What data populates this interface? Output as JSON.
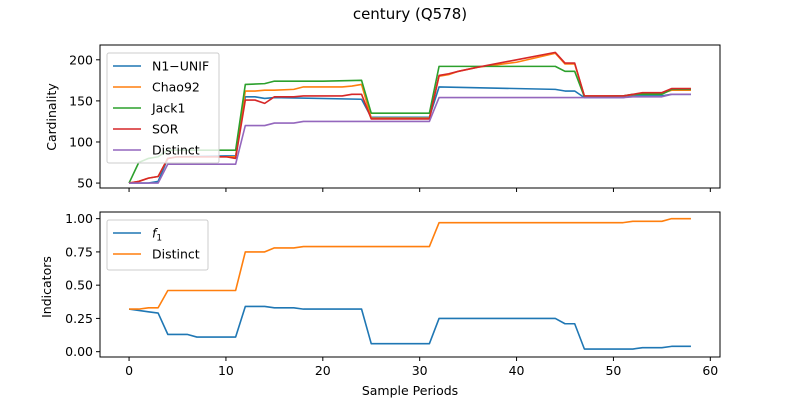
{
  "figure": {
    "title": "century (Q578)"
  },
  "chart_data": [
    {
      "type": "line",
      "ylabel": "Cardinality",
      "xlabel": "",
      "xlim": [
        -3,
        61
      ],
      "ylim": [
        44,
        218
      ],
      "xticks": [
        0,
        10,
        20,
        30,
        40,
        50,
        60
      ],
      "show_xtick_labels": false,
      "yticks": [
        50,
        100,
        150,
        200
      ],
      "grid": false,
      "legend_position": "upper-left",
      "series": [
        {
          "name": "N1−UNIF",
          "color": "#1f77b4",
          "x": [
            0,
            1,
            2,
            3,
            4,
            5,
            10,
            11,
            12,
            13,
            14,
            15,
            24,
            25,
            31,
            32,
            44,
            45,
            46,
            47,
            51,
            52,
            55,
            56,
            58
          ],
          "y": [
            50,
            50,
            50,
            52,
            80,
            82,
            83,
            83,
            155,
            155,
            153,
            154,
            152,
            130,
            130,
            167,
            164,
            162,
            162,
            154,
            154,
            156,
            156,
            158,
            158
          ]
        },
        {
          "name": "Chao92",
          "color": "#ff7f0e",
          "x": [
            0,
            1,
            2,
            3,
            4,
            5,
            10,
            11,
            12,
            13,
            14,
            15,
            17,
            18,
            22,
            23,
            24,
            25,
            31,
            32,
            33,
            34,
            36,
            40,
            44,
            45,
            46,
            47,
            51,
            53,
            55,
            56,
            57,
            58
          ],
          "y": [
            50,
            52,
            56,
            58,
            80,
            82,
            82,
            82,
            162,
            162,
            163,
            163,
            164,
            167,
            167,
            168,
            170,
            129,
            129,
            180,
            182,
            186,
            191,
            197,
            208,
            195,
            195,
            156,
            156,
            159,
            159,
            163,
            163,
            163
          ]
        },
        {
          "name": "Jack1",
          "color": "#2ca02c",
          "x": [
            0,
            1,
            2,
            3,
            4,
            5,
            10,
            11,
            12,
            14,
            15,
            20,
            24,
            25,
            31,
            32,
            44,
            45,
            46,
            47,
            51,
            52,
            55,
            56,
            58
          ],
          "y": [
            50,
            75,
            80,
            82,
            90,
            90,
            90,
            90,
            170,
            171,
            174,
            174,
            175,
            135,
            135,
            192,
            192,
            186,
            186,
            155,
            156,
            158,
            158,
            164,
            164
          ]
        },
        {
          "name": "SOR",
          "color": "#d62728",
          "x": [
            0,
            1,
            2,
            3,
            4,
            5,
            10,
            11,
            12,
            13,
            14,
            15,
            17,
            18,
            22,
            23,
            24,
            25,
            31,
            32,
            33,
            34,
            36,
            40,
            44,
            45,
            46,
            47,
            51,
            53,
            55,
            56,
            57,
            58
          ],
          "y": [
            50,
            52,
            56,
            58,
            80,
            82,
            82,
            80,
            151,
            151,
            147,
            155,
            155,
            156,
            156,
            158,
            158,
            128,
            128,
            181,
            183,
            186,
            191,
            200,
            209,
            196,
            196,
            156,
            156,
            160,
            160,
            165,
            165,
            165
          ]
        },
        {
          "name": "Distinct",
          "color": "#9467bd",
          "x": [
            0,
            1,
            2,
            3,
            4,
            5,
            10,
            11,
            12,
            14,
            15,
            17,
            18,
            24,
            25,
            31,
            32,
            51,
            52,
            55,
            56,
            58
          ],
          "y": [
            50,
            50,
            50,
            50,
            73,
            73,
            73,
            73,
            120,
            120,
            123,
            123,
            125,
            125,
            125,
            125,
            154,
            154,
            155,
            155,
            158,
            158
          ]
        }
      ]
    },
    {
      "type": "line",
      "ylabel": "Indicators",
      "xlabel": "Sample Periods",
      "xlim": [
        -3,
        61
      ],
      "ylim": [
        -0.04,
        1.05
      ],
      "xticks": [
        0,
        10,
        20,
        30,
        40,
        50,
        60
      ],
      "show_xtick_labels": true,
      "yticks": [
        0.0,
        0.25,
        0.5,
        0.75,
        1.0
      ],
      "ytick_labels": [
        "0.00",
        "0.25",
        "0.50",
        "0.75",
        "1.00"
      ],
      "grid": false,
      "legend_position": "upper-left",
      "series": [
        {
          "name": "f1",
          "label_main": "f",
          "label_sub": "1",
          "color": "#1f77b4",
          "x": [
            0,
            1,
            2,
            3,
            4,
            5,
            6,
            7,
            8,
            11,
            12,
            13,
            14,
            15,
            17,
            18,
            24,
            25,
            26,
            31,
            32,
            44,
            45,
            46,
            47,
            51,
            52,
            53,
            55,
            56,
            57,
            58
          ],
          "y": [
            0.32,
            0.31,
            0.3,
            0.29,
            0.13,
            0.13,
            0.13,
            0.11,
            0.11,
            0.11,
            0.34,
            0.34,
            0.34,
            0.33,
            0.33,
            0.32,
            0.32,
            0.06,
            0.06,
            0.06,
            0.25,
            0.25,
            0.21,
            0.21,
            0.02,
            0.02,
            0.02,
            0.03,
            0.03,
            0.04,
            0.04,
            0.04
          ]
        },
        {
          "name": "Distinct",
          "color": "#ff7f0e",
          "x": [
            0,
            1,
            2,
            3,
            4,
            5,
            10,
            11,
            12,
            13,
            14,
            15,
            17,
            18,
            24,
            25,
            31,
            32,
            51,
            52,
            55,
            56,
            58
          ],
          "y": [
            0.32,
            0.32,
            0.33,
            0.33,
            0.46,
            0.46,
            0.46,
            0.46,
            0.75,
            0.75,
            0.75,
            0.78,
            0.78,
            0.79,
            0.79,
            0.79,
            0.79,
            0.97,
            0.97,
            0.98,
            0.98,
            1.0,
            1.0
          ]
        }
      ]
    }
  ]
}
